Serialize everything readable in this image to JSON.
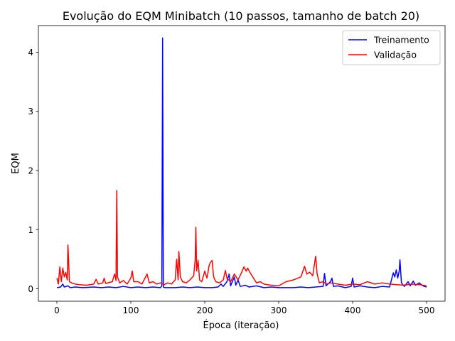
{
  "chart_data": {
    "type": "line",
    "title": "Evolução do EQM Minibatch (10 passos, tamanho de batch 20)",
    "xlabel": "Época (iteração)",
    "ylabel": "EQM",
    "xlim": [
      -25,
      525
    ],
    "ylim": [
      -0.21,
      4.45
    ],
    "xticks": [
      0,
      100,
      200,
      300,
      400,
      500
    ],
    "yticks": [
      0,
      1,
      2,
      3,
      4
    ],
    "grid": false,
    "legend_position": "top-right",
    "series": [
      {
        "name": "Treinamento",
        "color": "#0000ff",
        "points": [
          [
            0,
            0.02
          ],
          [
            5,
            0.03
          ],
          [
            8,
            0.08
          ],
          [
            10,
            0.03
          ],
          [
            15,
            0.05
          ],
          [
            18,
            0.02
          ],
          [
            25,
            0.03
          ],
          [
            35,
            0.02
          ],
          [
            50,
            0.03
          ],
          [
            60,
            0.02
          ],
          [
            70,
            0.03
          ],
          [
            80,
            0.02
          ],
          [
            90,
            0.04
          ],
          [
            100,
            0.02
          ],
          [
            110,
            0.03
          ],
          [
            120,
            0.02
          ],
          [
            130,
            0.03
          ],
          [
            140,
            0.02
          ],
          [
            142,
            0.05
          ],
          [
            143,
            4.24
          ],
          [
            144,
            0.03
          ],
          [
            146,
            0.02
          ],
          [
            160,
            0.02
          ],
          [
            170,
            0.03
          ],
          [
            180,
            0.02
          ],
          [
            190,
            0.03
          ],
          [
            200,
            0.02
          ],
          [
            210,
            0.02
          ],
          [
            218,
            0.03
          ],
          [
            222,
            0.08
          ],
          [
            225,
            0.04
          ],
          [
            230,
            0.12
          ],
          [
            233,
            0.25
          ],
          [
            235,
            0.05
          ],
          [
            240,
            0.2
          ],
          [
            242,
            0.06
          ],
          [
            245,
            0.15
          ],
          [
            248,
            0.04
          ],
          [
            255,
            0.06
          ],
          [
            260,
            0.03
          ],
          [
            270,
            0.05
          ],
          [
            280,
            0.02
          ],
          [
            290,
            0.03
          ],
          [
            300,
            0.02
          ],
          [
            310,
            0.02
          ],
          [
            320,
            0.02
          ],
          [
            330,
            0.03
          ],
          [
            340,
            0.02
          ],
          [
            350,
            0.03
          ],
          [
            360,
            0.04
          ],
          [
            362,
            0.26
          ],
          [
            364,
            0.05
          ],
          [
            370,
            0.12
          ],
          [
            372,
            0.18
          ],
          [
            374,
            0.04
          ],
          [
            380,
            0.05
          ],
          [
            390,
            0.02
          ],
          [
            398,
            0.04
          ],
          [
            400,
            0.18
          ],
          [
            402,
            0.03
          ],
          [
            410,
            0.05
          ],
          [
            420,
            0.03
          ],
          [
            430,
            0.02
          ],
          [
            440,
            0.04
          ],
          [
            450,
            0.03
          ],
          [
            455,
            0.27
          ],
          [
            457,
            0.2
          ],
          [
            459,
            0.32
          ],
          [
            461,
            0.18
          ],
          [
            463,
            0.3
          ],
          [
            464,
            0.49
          ],
          [
            466,
            0.1
          ],
          [
            470,
            0.04
          ],
          [
            475,
            0.12
          ],
          [
            478,
            0.05
          ],
          [
            482,
            0.13
          ],
          [
            485,
            0.06
          ],
          [
            490,
            0.1
          ],
          [
            495,
            0.05
          ],
          [
            500,
            0.03
          ]
        ]
      },
      {
        "name": "Validação",
        "color": "#ff0000",
        "points": [
          [
            0,
            0.18
          ],
          [
            2,
            0.08
          ],
          [
            4,
            0.37
          ],
          [
            6,
            0.12
          ],
          [
            8,
            0.35
          ],
          [
            10,
            0.2
          ],
          [
            12,
            0.28
          ],
          [
            14,
            0.15
          ],
          [
            15,
            0.74
          ],
          [
            17,
            0.12
          ],
          [
            20,
            0.1
          ],
          [
            25,
            0.08
          ],
          [
            30,
            0.07
          ],
          [
            40,
            0.06
          ],
          [
            50,
            0.08
          ],
          [
            53,
            0.16
          ],
          [
            56,
            0.08
          ],
          [
            62,
            0.1
          ],
          [
            64,
            0.18
          ],
          [
            66,
            0.09
          ],
          [
            75,
            0.12
          ],
          [
            78,
            0.25
          ],
          [
            80,
            0.14
          ],
          [
            81,
            1.66
          ],
          [
            82,
            0.2
          ],
          [
            85,
            0.1
          ],
          [
            90,
            0.14
          ],
          [
            95,
            0.08
          ],
          [
            100,
            0.18
          ],
          [
            102,
            0.3
          ],
          [
            104,
            0.12
          ],
          [
            110,
            0.12
          ],
          [
            115,
            0.08
          ],
          [
            120,
            0.2
          ],
          [
            122,
            0.25
          ],
          [
            125,
            0.1
          ],
          [
            130,
            0.12
          ],
          [
            135,
            0.08
          ],
          [
            140,
            0.1
          ],
          [
            145,
            0.07
          ],
          [
            150,
            0.1
          ],
          [
            155,
            0.08
          ],
          [
            160,
            0.15
          ],
          [
            162,
            0.5
          ],
          [
            164,
            0.15
          ],
          [
            165,
            0.63
          ],
          [
            167,
            0.2
          ],
          [
            170,
            0.12
          ],
          [
            175,
            0.1
          ],
          [
            180,
            0.15
          ],
          [
            185,
            0.22
          ],
          [
            187,
            0.48
          ],
          [
            188,
            1.04
          ],
          [
            189,
            0.3
          ],
          [
            191,
            0.48
          ],
          [
            193,
            0.15
          ],
          [
            196,
            0.12
          ],
          [
            200,
            0.3
          ],
          [
            203,
            0.18
          ],
          [
            206,
            0.4
          ],
          [
            208,
            0.45
          ],
          [
            210,
            0.48
          ],
          [
            212,
            0.2
          ],
          [
            215,
            0.12
          ],
          [
            220,
            0.1
          ],
          [
            225,
            0.15
          ],
          [
            228,
            0.31
          ],
          [
            230,
            0.18
          ],
          [
            235,
            0.12
          ],
          [
            240,
            0.25
          ],
          [
            245,
            0.15
          ],
          [
            250,
            0.28
          ],
          [
            253,
            0.37
          ],
          [
            256,
            0.3
          ],
          [
            258,
            0.35
          ],
          [
            261,
            0.28
          ],
          [
            265,
            0.2
          ],
          [
            270,
            0.1
          ],
          [
            275,
            0.12
          ],
          [
            280,
            0.08
          ],
          [
            285,
            0.07
          ],
          [
            290,
            0.06
          ],
          [
            300,
            0.05
          ],
          [
            310,
            0.12
          ],
          [
            320,
            0.15
          ],
          [
            330,
            0.2
          ],
          [
            335,
            0.38
          ],
          [
            338,
            0.25
          ],
          [
            342,
            0.28
          ],
          [
            346,
            0.22
          ],
          [
            350,
            0.55
          ],
          [
            352,
            0.25
          ],
          [
            355,
            0.1
          ],
          [
            360,
            0.12
          ],
          [
            365,
            0.08
          ],
          [
            370,
            0.1
          ],
          [
            380,
            0.08
          ],
          [
            390,
            0.06
          ],
          [
            400,
            0.08
          ],
          [
            410,
            0.07
          ],
          [
            420,
            0.12
          ],
          [
            430,
            0.08
          ],
          [
            440,
            0.1
          ],
          [
            450,
            0.08
          ],
          [
            460,
            0.07
          ],
          [
            470,
            0.06
          ],
          [
            480,
            0.08
          ],
          [
            490,
            0.07
          ],
          [
            500,
            0.05
          ]
        ]
      }
    ]
  }
}
